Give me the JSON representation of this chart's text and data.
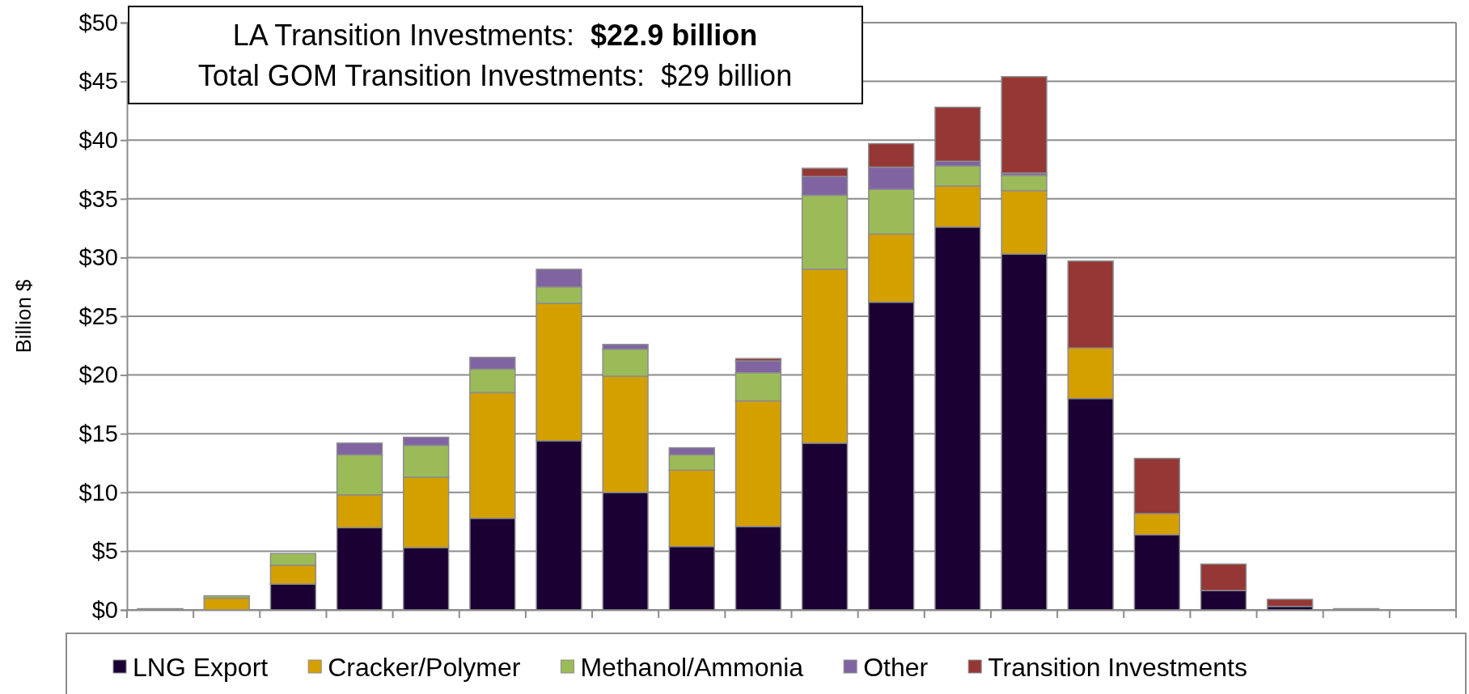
{
  "chart_data": {
    "type": "bar",
    "stacked": true,
    "ylabel": "Billion $",
    "categories": [
      null,
      null,
      null,
      null,
      null,
      null,
      null,
      null,
      null,
      null,
      null,
      null,
      null,
      null,
      null,
      null,
      null,
      null,
      null,
      null
    ],
    "series": [
      {
        "name": "LNG Export",
        "color": "#1a0033",
        "values": [
          0,
          0,
          2.2,
          7.0,
          5.3,
          7.8,
          14.4,
          10.0,
          5.4,
          7.1,
          14.2,
          26.2,
          32.6,
          30.3,
          18.0,
          6.4,
          1.65,
          0.3,
          0,
          0
        ]
      },
      {
        "name": "Cracker/Polymer",
        "color": "#d4a000",
        "values": [
          0,
          1.0,
          1.6,
          2.8,
          6.0,
          10.7,
          11.7,
          9.9,
          6.5,
          10.7,
          14.8,
          5.8,
          3.5,
          5.4,
          4.3,
          1.8,
          0,
          0,
          0,
          0
        ]
      },
      {
        "name": "Methanol/Ammonia",
        "color": "#9bbb59",
        "values": [
          0.1,
          0.2,
          1.0,
          3.4,
          2.7,
          2.0,
          1.4,
          2.3,
          1.3,
          2.4,
          6.3,
          3.8,
          1.7,
          1.3,
          0,
          0,
          0,
          0,
          0,
          0
        ]
      },
      {
        "name": "Other",
        "color": "#8064a2",
        "values": [
          0,
          0,
          0,
          1.0,
          0.7,
          1.0,
          1.5,
          0.4,
          0.6,
          1.0,
          1.6,
          1.9,
          0.4,
          0.2,
          0,
          0,
          0,
          0,
          0,
          0
        ]
      },
      {
        "name": "Transition Investments",
        "color": "#953735",
        "values": [
          0,
          0,
          0,
          0,
          0,
          0,
          0,
          0,
          0,
          0.2,
          0.7,
          2.0,
          4.6,
          8.2,
          7.4,
          4.7,
          2.25,
          0.6,
          0.1,
          0
        ]
      }
    ],
    "ylim": [
      0,
      50
    ],
    "yticks": [
      {
        "value": 0,
        "label": "$0"
      },
      {
        "value": 5,
        "label": "$5"
      },
      {
        "value": 10,
        "label": "$10"
      },
      {
        "value": 15,
        "label": "$15"
      },
      {
        "value": 20,
        "label": "$20"
      },
      {
        "value": 25,
        "label": "$25"
      },
      {
        "value": 30,
        "label": "$30"
      },
      {
        "value": 35,
        "label": "$35"
      },
      {
        "value": 40,
        "label": "$40"
      },
      {
        "value": 45,
        "label": "$45"
      },
      {
        "value": 50,
        "label": "$50"
      }
    ],
    "grid": "y",
    "legend": "bottom",
    "annotations": [
      "LA Transition Investments:  $22.9 billion",
      "Total GOM Transition Investments:  $29 billion"
    ]
  }
}
